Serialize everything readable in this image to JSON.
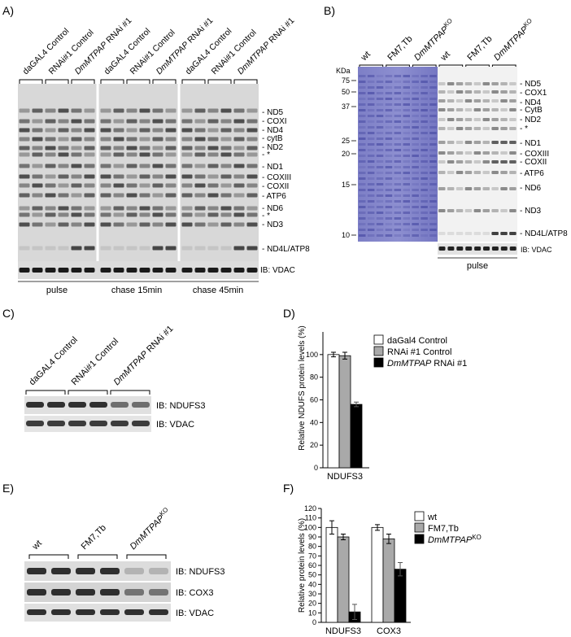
{
  "panels": {
    "A": {
      "label": "A)",
      "groups": [
        "daGAL4 Control",
        "RNAi#1 Control",
        "DmMTPAP RNAi #1"
      ],
      "conditions": [
        "pulse",
        "chase 15min",
        "chase 45min"
      ],
      "bands": [
        "ND5",
        "COXI",
        "ND4",
        "cytB",
        "ND2",
        "*",
        "ND1",
        "COXIII",
        "COXII",
        "ATP6",
        "ND6",
        "*",
        "ND3",
        "ND4L/ATP8"
      ],
      "ib": "IB: VDAC"
    },
    "B": {
      "label": "B)",
      "groups": [
        "wt",
        "FM7,Tb",
        "DmMTPAP"
      ],
      "ko_sup": "KO",
      "kda_title": "KDa",
      "kda": [
        "75",
        "50",
        "37",
        "25",
        "20",
        "15",
        "10"
      ],
      "bands": [
        "ND5",
        "COX1",
        "ND4",
        "CytB",
        "ND2",
        "*",
        "ND1",
        "COXIII",
        "COXII",
        "ATP6",
        "ND6",
        "ND3",
        "ND4L/ATP8"
      ],
      "ib": "IB: VDAC",
      "condition": "pulse"
    },
    "C": {
      "label": "C)",
      "groups": [
        "daGAL4 Control",
        "RNAi#1 Control",
        "DmMTPAP RNAi #1"
      ],
      "ib": [
        "IB: NDUFS3",
        "IB: VDAC"
      ]
    },
    "E": {
      "label": "E)",
      "groups": [
        "wt",
        "FM7,Tb",
        "DmMTPAP"
      ],
      "ko_sup": "KO",
      "ib": [
        "IB: NDUFS3",
        "IB: COX3",
        "IB: VDAC"
      ]
    }
  },
  "chart_data": [
    {
      "panel": "D)",
      "type": "bar",
      "ylabel": "Relative NDUFS protein levels (%)",
      "yticks": [
        "0",
        "20",
        "40",
        "60",
        "80",
        "100"
      ],
      "ylim": [
        0,
        120
      ],
      "categories": [
        "NDUFS3"
      ],
      "series": [
        {
          "name": "daGal4 Control",
          "values": [
            100
          ],
          "err": [
            2
          ],
          "color": "#ffffff"
        },
        {
          "name": "RNAi #1 Control",
          "values": [
            99
          ],
          "err": [
            3
          ],
          "color": "#a9a9a9"
        },
        {
          "name": "DmMTPAP RNAi #1",
          "values": [
            56
          ],
          "err": [
            2
          ],
          "color": "#000000"
        }
      ],
      "legend": "top-right"
    },
    {
      "panel": "F)",
      "type": "bar",
      "ylabel": "Relative protein levels (%)",
      "yticks": [
        "0",
        "10",
        "20",
        "30",
        "40",
        "50",
        "60",
        "70",
        "80",
        "90",
        "100",
        "110",
        "120"
      ],
      "ylim": [
        0,
        120
      ],
      "categories": [
        "NDUFS3",
        "COX3"
      ],
      "series": [
        {
          "name": "wt",
          "values": [
            100,
            100
          ],
          "err": [
            7,
            3
          ],
          "color": "#ffffff"
        },
        {
          "name": "FM7,Tb",
          "values": [
            90,
            88
          ],
          "err": [
            3,
            5
          ],
          "color": "#a9a9a9"
        },
        {
          "name": "DmMTPAP",
          "sup": "KO",
          "values": [
            11,
            56
          ],
          "err": [
            8,
            7
          ],
          "color": "#000000"
        }
      ],
      "legend": "top-right"
    }
  ]
}
